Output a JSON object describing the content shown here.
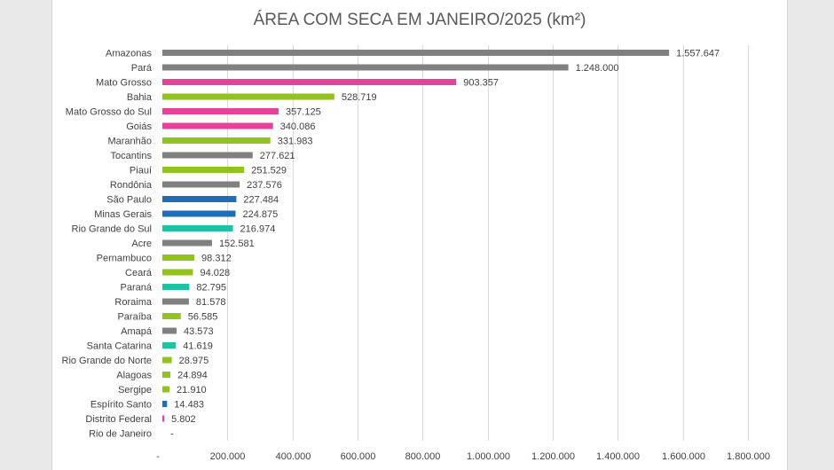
{
  "chart_data": {
    "type": "bar",
    "orientation": "horizontal",
    "title": "ÁREA COM SECA EM JANEIRO/2025 (km²)",
    "xlabel": "",
    "ylabel": "",
    "xlim": [
      0,
      1800000
    ],
    "grid": true,
    "x_ticks": [
      {
        "value": 0,
        "label": "-"
      },
      {
        "value": 200000,
        "label": "200.000"
      },
      {
        "value": 400000,
        "label": "400.000"
      },
      {
        "value": 600000,
        "label": "600.000"
      },
      {
        "value": 800000,
        "label": "800.000"
      },
      {
        "value": 1000000,
        "label": "1.000.000"
      },
      {
        "value": 1200000,
        "label": "1.200.000"
      },
      {
        "value": 1400000,
        "label": "1.400.000"
      },
      {
        "value": 1600000,
        "label": "1.600.000"
      },
      {
        "value": 1800000,
        "label": "1.800.000"
      }
    ],
    "colors": {
      "gray": "#808080",
      "pink": "#e8419c",
      "lime": "#92c21c",
      "blue": "#1f6db4",
      "teal": "#1fc3a4"
    },
    "bars": [
      {
        "category": "Amazonas",
        "value": 1557647,
        "label": "1.557.647",
        "color": "gray"
      },
      {
        "category": "Pará",
        "value": 1248000,
        "label": "1.248.000",
        "color": "gray"
      },
      {
        "category": "Mato Grosso",
        "value": 903357,
        "label": "903.357",
        "color": "pink"
      },
      {
        "category": "Bahia",
        "value": 528719,
        "label": "528.719",
        "color": "lime"
      },
      {
        "category": "Mato Grosso do Sul",
        "value": 357125,
        "label": "357.125",
        "color": "pink"
      },
      {
        "category": "Goiás",
        "value": 340086,
        "label": "340.086",
        "color": "pink"
      },
      {
        "category": "Maranhão",
        "value": 331983,
        "label": "331.983",
        "color": "lime"
      },
      {
        "category": "Tocantins",
        "value": 277621,
        "label": "277.621",
        "color": "gray"
      },
      {
        "category": "Piauí",
        "value": 251529,
        "label": "251.529",
        "color": "lime"
      },
      {
        "category": "Rondônia",
        "value": 237576,
        "label": "237.576",
        "color": "gray"
      },
      {
        "category": "São Paulo",
        "value": 227484,
        "label": "227.484",
        "color": "blue"
      },
      {
        "category": "Minas Gerais",
        "value": 224875,
        "label": "224.875",
        "color": "blue"
      },
      {
        "category": "Rio Grande do Sul",
        "value": 216974,
        "label": "216.974",
        "color": "teal"
      },
      {
        "category": "Acre",
        "value": 152581,
        "label": "152.581",
        "color": "gray"
      },
      {
        "category": "Pernambuco",
        "value": 98312,
        "label": "98.312",
        "color": "lime"
      },
      {
        "category": "Ceará",
        "value": 94028,
        "label": "94.028",
        "color": "lime"
      },
      {
        "category": "Paraná",
        "value": 82795,
        "label": "82.795",
        "color": "teal"
      },
      {
        "category": "Roraima",
        "value": 81578,
        "label": "81.578",
        "color": "gray"
      },
      {
        "category": "Paraíba",
        "value": 56585,
        "label": "56.585",
        "color": "lime"
      },
      {
        "category": "Amapá",
        "value": 43573,
        "label": "43.573",
        "color": "gray"
      },
      {
        "category": "Santa Catarina",
        "value": 41619,
        "label": "41.619",
        "color": "teal"
      },
      {
        "category": "Rio Grande do Norte",
        "value": 28975,
        "label": "28.975",
        "color": "lime"
      },
      {
        "category": "Alagoas",
        "value": 24894,
        "label": "24.894",
        "color": "lime"
      },
      {
        "category": "Sergipe",
        "value": 21910,
        "label": "21.910",
        "color": "lime"
      },
      {
        "category": "Espírito Santo",
        "value": 14483,
        "label": "14.483",
        "color": "blue"
      },
      {
        "category": "Distrito Federal",
        "value": 5802,
        "label": "5.802",
        "color": "pink"
      },
      {
        "category": "Rio de Janeiro",
        "value": 0,
        "label": "-",
        "color": "gray"
      }
    ]
  }
}
